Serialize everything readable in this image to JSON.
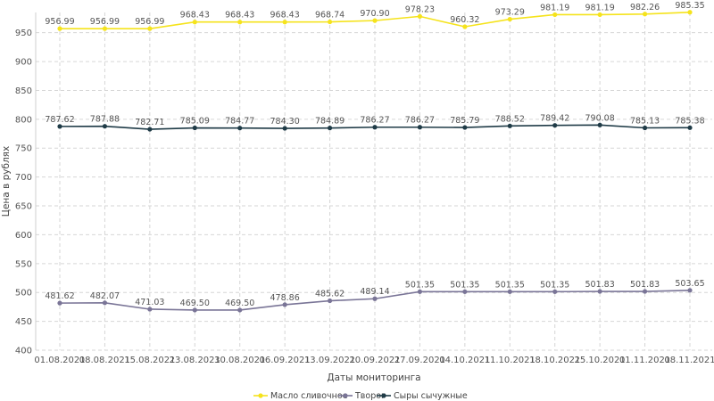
{
  "chart_data": {
    "type": "line",
    "title": "",
    "xlabel": "Даты мониторинга",
    "ylabel": "Цена в рублях",
    "ylim": [
      400,
      985
    ],
    "yticks": [
      400,
      450,
      500,
      550,
      600,
      650,
      700,
      750,
      800,
      850,
      900,
      950
    ],
    "grid": true,
    "legend_position": "bottom",
    "categories": [
      "01.08.2021",
      "08.08.2021",
      "15.08.2021",
      "23.08.2021",
      "30.08.2021",
      "06.09.2021",
      "13.09.2021",
      "20.09.2021",
      "27.09.2021",
      "04.10.2021",
      "11.10.2021",
      "18.10.2021",
      "25.10.2021",
      "01.11.2021",
      "08.11.2021"
    ],
    "series": [
      {
        "name": "Масло сливочное",
        "color": "#f5e31c",
        "values": [
          956.99,
          956.99,
          956.99,
          968.43,
          968.43,
          968.43,
          968.74,
          970.9,
          978.23,
          960.32,
          973.29,
          981.19,
          981.19,
          982.26,
          985.35
        ],
        "labels": [
          "956.99",
          "956.99",
          "956.99",
          "968.43",
          "968.43",
          "968.43",
          "968.74",
          "970.90",
          "978.23",
          "960.32",
          "973.29",
          "981.19",
          "981.19",
          "982.26",
          "985.35"
        ]
      },
      {
        "name": "Творог",
        "color": "#7a7597",
        "values": [
          481.62,
          482.07,
          471.03,
          469.5,
          469.5,
          478.86,
          485.62,
          489.14,
          501.35,
          501.35,
          501.35,
          501.35,
          501.83,
          501.83,
          503.65
        ],
        "labels": [
          "481.62",
          "482.07",
          "471.03",
          "469.50",
          "469.50",
          "478.86",
          "485.62",
          "489.14",
          "501.35",
          "501.35",
          "501.35",
          "501.35",
          "501.83",
          "501.83",
          "503.65"
        ]
      },
      {
        "name": "Сыры сычужные",
        "color": "#1f3b47",
        "values": [
          787.62,
          787.88,
          782.71,
          785.09,
          784.77,
          784.3,
          784.89,
          786.27,
          786.27,
          785.79,
          788.52,
          789.42,
          790.08,
          785.13,
          785.38
        ],
        "labels": [
          "787.62",
          "787.88",
          "782.71",
          "785.09",
          "784.77",
          "784.30",
          "784.89",
          "786.27",
          "786.27",
          "785.79",
          "788.52",
          "789.42",
          "790.08",
          "785.13",
          "785.38"
        ]
      }
    ]
  }
}
